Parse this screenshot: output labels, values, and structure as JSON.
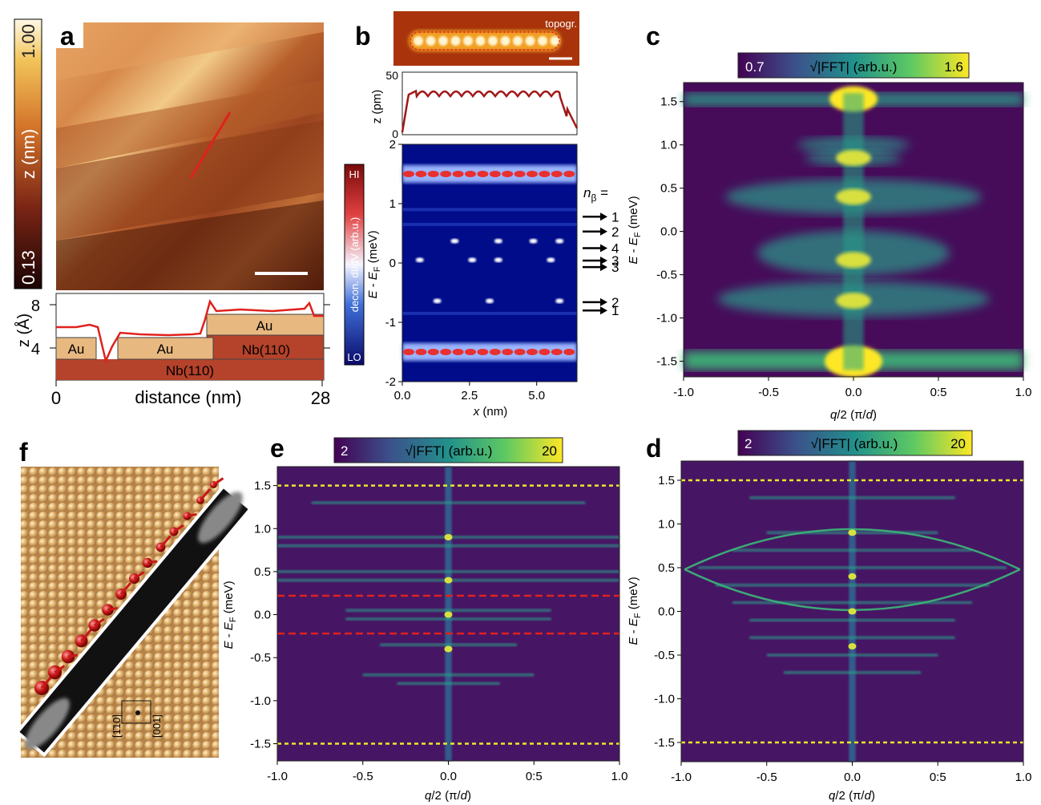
{
  "panels": {
    "a": {
      "letter": "a",
      "colorbar": {
        "max": "1.00",
        "min": "0.13",
        "label": "z (nm)"
      },
      "profile": {
        "ylabel": "z (Å)",
        "yticks": [
          "8",
          "4"
        ],
        "xticks": [
          "0",
          "28"
        ],
        "xlabel": "distance (nm)",
        "blocks": [
          "Au",
          "Au",
          "Au",
          "Nb(110)",
          "Nb(110)"
        ]
      }
    },
    "b": {
      "letter": "b",
      "topo_label": "topogr.",
      "profile": {
        "ylabel": "z (pm)",
        "yticks": [
          "50",
          "0"
        ]
      },
      "map": {
        "ylabel": "E - E_F (meV)",
        "yticks": [
          "2",
          "1",
          "0",
          "-1",
          "-2"
        ],
        "xticks": [
          "0.0",
          "2.5",
          "5.0"
        ],
        "xlabel": "x (nm)",
        "colorbar": {
          "hi": "HI",
          "lo": "LO",
          "label": "decon. dI/dV (arb.u.)"
        }
      },
      "n_beta": {
        "label": "n",
        "sub": "β",
        "eq": " =",
        "values": [
          "1",
          "2",
          "4",
          "3",
          "3",
          "2",
          "1"
        ]
      }
    },
    "c": {
      "letter": "c",
      "colorbar": {
        "min": "0.7",
        "max": "1.6",
        "label": "√|FFT| (arb.u.)"
      },
      "yticks": [
        "1.5",
        "1.0",
        "0.5",
        "0.0",
        "-0.5",
        "-1.0",
        "-1.5"
      ],
      "xticks": [
        "-1.0",
        "-0.5",
        "0.0",
        "0:5",
        "1.0"
      ],
      "ylabel": "E - E_F (meV)",
      "xlabel": "q/2 (π/d)"
    },
    "d": {
      "letter": "d",
      "colorbar": {
        "min": "2",
        "max": "20",
        "label": "√|FFT| (arb.u.)"
      },
      "yticks": [
        "1.5",
        "1.0",
        "0.5",
        "0.0",
        "-0.5",
        "-1.0",
        "-1.5"
      ],
      "xticks": [
        "-1.0",
        "-0.5",
        "0.0",
        "0:5",
        "1.0"
      ],
      "ylabel": "E - E_F (meV)",
      "xlabel": "q/2 (π/d)"
    },
    "e": {
      "letter": "e",
      "colorbar": {
        "min": "2",
        "max": "20",
        "label": "√|FFT| (arb.u.)"
      },
      "yticks": [
        "1.5",
        "1.0",
        "0.5",
        "0.0",
        "-0.5",
        "-1.0",
        "-1.5"
      ],
      "xticks": [
        "-1.0",
        "-0.5",
        "0.0",
        "0:5",
        "1.0"
      ],
      "ylabel": "E - E_F (meV)",
      "xlabel": "q/2 (π/d)"
    },
    "f": {
      "letter": "f",
      "directions": [
        "[1̄10]",
        "[001]"
      ]
    }
  },
  "colors": {
    "viridis_dark": "#440154",
    "viridis_mid": "#21918c",
    "viridis_bright": "#fde725",
    "red_line": "#e0211d",
    "yellow_dashed": "#e8e82a",
    "red_dashed": "#e0211d",
    "gold": "#c98b3c"
  }
}
